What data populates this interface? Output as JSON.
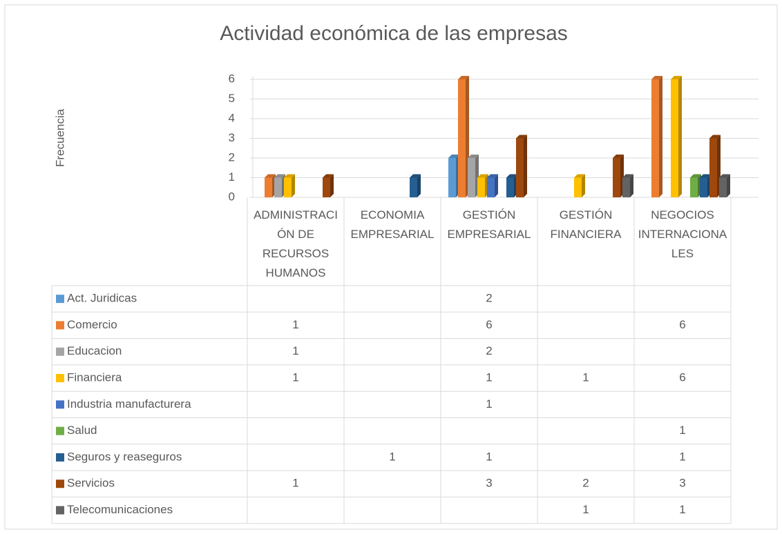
{
  "chart_data": {
    "type": "bar3d",
    "title": "Actividad económica de las empresas",
    "y_label": "Frecuencia",
    "categories": [
      "ADMINISTRACIÓN DE RECURSOS HUMANOS",
      "ECONOMIA EMPRESARIAL",
      "GESTIÓN EMPRESARIAL",
      "GESTIÓN FINANCIERA",
      "NEGOCIOS INTERNACIONALES"
    ],
    "series": [
      {
        "name": "Act. Juridicas",
        "color": "#5b9bd5",
        "values": [
          null,
          null,
          2,
          null,
          null
        ]
      },
      {
        "name": "Comercio",
        "color": "#ed7d31",
        "values": [
          1,
          null,
          6,
          null,
          6
        ]
      },
      {
        "name": "Educacion",
        "color": "#a5a5a5",
        "values": [
          1,
          null,
          2,
          null,
          null
        ]
      },
      {
        "name": "Financiera",
        "color": "#ffc000",
        "values": [
          1,
          null,
          1,
          1,
          6
        ]
      },
      {
        "name": "Industria manufacturera",
        "color": "#4472c4",
        "values": [
          null,
          null,
          1,
          null,
          null
        ]
      },
      {
        "name": "Salud",
        "color": "#70ad47",
        "values": [
          null,
          null,
          null,
          null,
          1
        ]
      },
      {
        "name": "Seguros y reaseguros",
        "color": "#255e91",
        "values": [
          null,
          1,
          1,
          null,
          1
        ]
      },
      {
        "name": "Servicios",
        "color": "#9e480e",
        "values": [
          1,
          null,
          3,
          2,
          3
        ]
      },
      {
        "name": "Telecomunicaciones",
        "color": "#636363",
        "values": [
          null,
          null,
          null,
          1,
          1
        ]
      }
    ],
    "ylim": [
      0,
      6
    ],
    "yticks": [
      0,
      1,
      2,
      3,
      4,
      5,
      6
    ],
    "grid": true,
    "data_table": true
  }
}
